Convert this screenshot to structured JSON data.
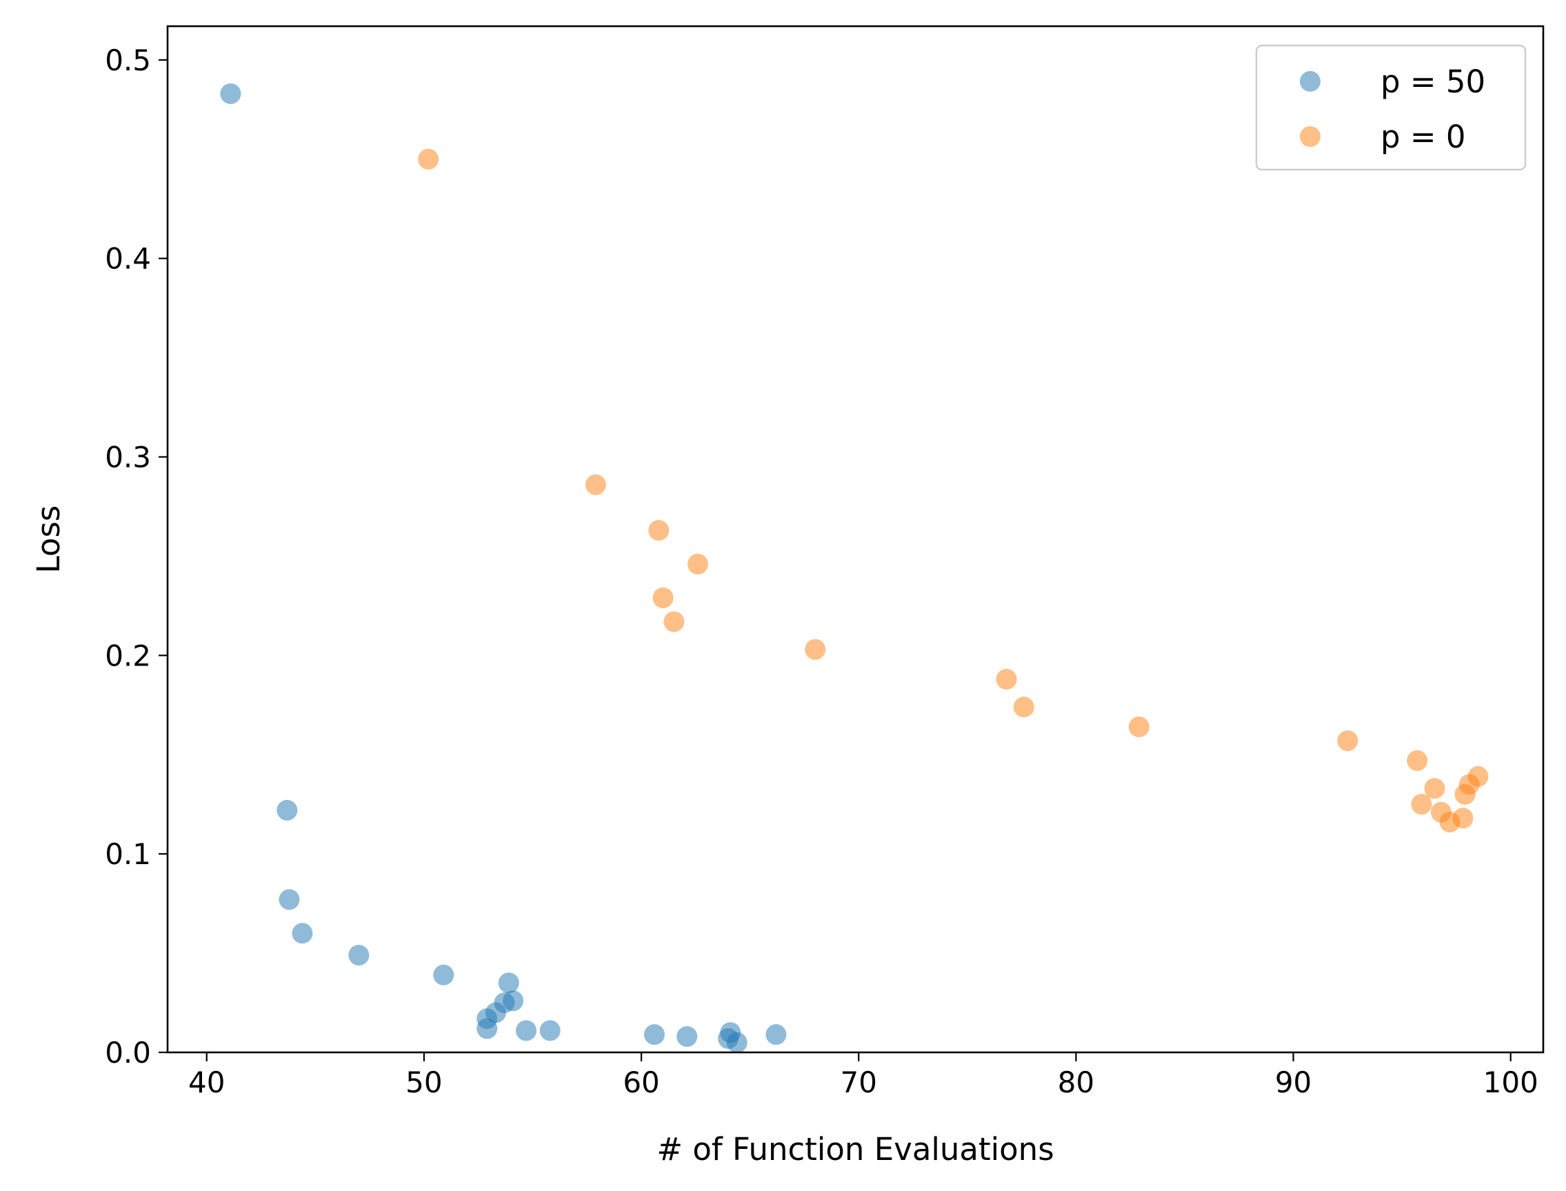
{
  "chart_data": {
    "type": "scatter",
    "xlabel": "# of Function Evaluations",
    "ylabel": "Loss",
    "xlim": [
      38.2,
      101.5
    ],
    "ylim": [
      0,
      0.517
    ],
    "xticks": [
      40,
      50,
      60,
      70,
      80,
      90,
      100
    ],
    "yticks": [
      0.0,
      0.1,
      0.2,
      0.3,
      0.4,
      0.5
    ],
    "ytick_labels": [
      "0.0",
      "0.1",
      "0.2",
      "0.3",
      "0.4",
      "0.5"
    ],
    "grid": false,
    "legend_position": "top-right",
    "series": [
      {
        "name": "p = 50",
        "color": "#1f77b4",
        "points": [
          [
            41.1,
            0.483
          ],
          [
            43.7,
            0.122
          ],
          [
            43.8,
            0.077
          ],
          [
            44.4,
            0.06
          ],
          [
            47.0,
            0.049
          ],
          [
            50.9,
            0.039
          ],
          [
            52.9,
            0.017
          ],
          [
            52.9,
            0.012
          ],
          [
            53.3,
            0.02
          ],
          [
            53.7,
            0.025
          ],
          [
            53.9,
            0.035
          ],
          [
            54.1,
            0.026
          ],
          [
            54.7,
            0.011
          ],
          [
            55.8,
            0.011
          ],
          [
            60.6,
            0.009
          ],
          [
            62.1,
            0.008
          ],
          [
            64.0,
            0.007
          ],
          [
            64.1,
            0.01
          ],
          [
            64.4,
            0.005
          ],
          [
            66.2,
            0.009
          ]
        ]
      },
      {
        "name": "p = 0",
        "color": "#ff7f0e",
        "points": [
          [
            50.2,
            0.45
          ],
          [
            57.9,
            0.286
          ],
          [
            60.8,
            0.263
          ],
          [
            61.0,
            0.229
          ],
          [
            61.5,
            0.217
          ],
          [
            62.6,
            0.246
          ],
          [
            68.0,
            0.203
          ],
          [
            76.8,
            0.188
          ],
          [
            77.6,
            0.174
          ],
          [
            82.9,
            0.164
          ],
          [
            92.5,
            0.157
          ],
          [
            95.7,
            0.147
          ],
          [
            95.9,
            0.125
          ],
          [
            96.5,
            0.133
          ],
          [
            96.8,
            0.121
          ],
          [
            97.2,
            0.116
          ],
          [
            97.8,
            0.118
          ],
          [
            97.9,
            0.13
          ],
          [
            98.1,
            0.135
          ],
          [
            98.5,
            0.139
          ]
        ]
      }
    ]
  }
}
